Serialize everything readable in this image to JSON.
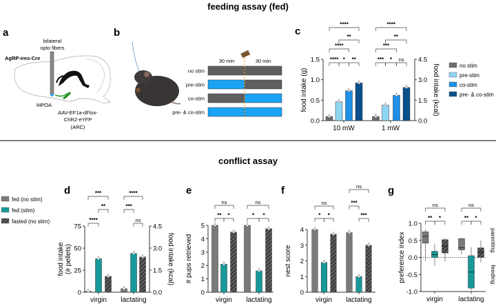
{
  "titles": {
    "top": "feeding assay (fed)",
    "bottom": "conflict assay"
  },
  "panel_labels": {
    "a": "a",
    "b": "b",
    "c": "c",
    "d": "d",
    "e": "e",
    "f": "f",
    "g": "g"
  },
  "panel_a": {
    "fiber_label_1": "bilateral",
    "fiber_label_2": "opto fibers",
    "genotype": "AgRP-ires-Cre",
    "region": "MPOA",
    "virus_1": "AAV-EF1a-dFlox-",
    "virus_2": "ChR2-eYFP",
    "virus_3": "(ARC)"
  },
  "panel_b": {
    "period_1": "30 min",
    "period_2": "30 min",
    "rows": [
      {
        "label": "no stim",
        "first": "off",
        "second": "off"
      },
      {
        "label": "pre-stim",
        "first": "on",
        "second": "off"
      },
      {
        "label": "co-stim",
        "first": "off",
        "second": "on"
      },
      {
        "label": "pre- & co-stim",
        "first": "on",
        "second": "on"
      }
    ],
    "colors": {
      "on": "#1aa3f5",
      "off": "#5f5f5f",
      "food_marker": "#f0a030"
    }
  },
  "legend_c": [
    {
      "label": "no stim",
      "color": "#6e6e6e"
    },
    {
      "label": "pre-stim",
      "color": "#8fd6f5"
    },
    {
      "label": "co-stim",
      "color": "#1e90e8"
    },
    {
      "label": "pre- & co-stim",
      "color": "#0b4f8a"
    }
  ],
  "legend_d": [
    {
      "label": "fed (no stim)",
      "color": "#7a7a7a",
      "hatch": false
    },
    {
      "label": "fed (stim)",
      "color": "#17999a",
      "hatch": false
    },
    {
      "label": "fasted (no stim)",
      "color": "#3d3d3d",
      "hatch": true
    }
  ],
  "chart_data": [
    {
      "id": "c",
      "type": "bar",
      "ylabel": "food intake (g)",
      "ylabel_right": "food intake (kcal)",
      "ylim": [
        0,
        1.5
      ],
      "yticks": [
        "0.0",
        "0.5",
        "1.0",
        "1.5"
      ],
      "ylim_right": [
        0,
        4.5
      ],
      "yticks_right": [
        "0.0",
        "1.5",
        "3.0",
        "4.5"
      ],
      "categories": [
        "10 mW",
        "1 mW"
      ],
      "series": [
        {
          "name": "no stim",
          "values": [
            0.1,
            0.1
          ]
        },
        {
          "name": "pre-stim",
          "values": [
            0.46,
            0.38
          ]
        },
        {
          "name": "co-stim",
          "values": [
            0.73,
            0.62
          ]
        },
        {
          "name": "pre- & co-stim",
          "values": [
            0.92,
            0.81
          ]
        }
      ],
      "significance": [
        [
          {
            "pair": [
              0,
              1
            ],
            "tier": 0,
            "label": "****"
          },
          {
            "pair": [
              1,
              2
            ],
            "tier": 0,
            "label": "*"
          },
          {
            "pair": [
              2,
              3
            ],
            "tier": 0,
            "label": "**"
          },
          {
            "pair": [
              0,
              2
            ],
            "tier": 1,
            "label": "****"
          },
          {
            "pair": [
              1,
              3
            ],
            "tier": 2,
            "label": "**"
          },
          {
            "pair": [
              0,
              3
            ],
            "tier": 3,
            "label": "****"
          }
        ],
        [
          {
            "pair": [
              0,
              1
            ],
            "tier": 0,
            "label": "***"
          },
          {
            "pair": [
              1,
              2
            ],
            "tier": 0,
            "label": "*"
          },
          {
            "pair": [
              2,
              3
            ],
            "tier": 0,
            "label": "ns"
          },
          {
            "pair": [
              0,
              2
            ],
            "tier": 1,
            "label": "***"
          },
          {
            "pair": [
              1,
              3
            ],
            "tier": 2,
            "label": "**"
          },
          {
            "pair": [
              0,
              3
            ],
            "tier": 3,
            "label": "****"
          }
        ]
      ]
    },
    {
      "id": "d",
      "type": "bar",
      "ylabel": "food intake",
      "ylabel_2": "(# pellets)",
      "ylabel_right": "food intake (kcal)",
      "ylim": [
        0,
        75
      ],
      "yticks": [
        "0",
        "25",
        "50",
        "75"
      ],
      "ylim_right": [
        0,
        4.5
      ],
      "yticks_right": [
        "0.0",
        "1.5",
        "3.0",
        "4.5"
      ],
      "categories": [
        "virgin",
        "lactating"
      ],
      "series": [
        {
          "name": "fed (no stim)",
          "values": [
            1,
            4
          ]
        },
        {
          "name": "fed (stim)",
          "values": [
            38,
            44
          ]
        },
        {
          "name": "fasted (no stim)",
          "values": [
            18,
            40
          ]
        }
      ],
      "significance": [
        [
          {
            "pair": [
              0,
              1
            ],
            "tier": 0,
            "label": "****"
          },
          {
            "pair": [
              1,
              2
            ],
            "tier": 1,
            "label": "**"
          },
          {
            "pair": [
              0,
              2
            ],
            "tier": 2,
            "label": "***"
          }
        ],
        [
          {
            "pair": [
              1,
              2
            ],
            "tier": 0,
            "label": "ns"
          },
          {
            "pair": [
              0,
              1
            ],
            "tier": 1,
            "label": "***"
          },
          {
            "pair": [
              0,
              2
            ],
            "tier": 2,
            "label": "****"
          }
        ]
      ]
    },
    {
      "id": "e",
      "type": "bar",
      "ylabel": "# pups retrieved",
      "ylim": [
        0,
        5
      ],
      "yticks": [
        "0",
        "1",
        "2",
        "3",
        "4",
        "5"
      ],
      "categories": [
        "virgin",
        "lactating"
      ],
      "series": [
        {
          "name": "fed (no stim)",
          "values": [
            5,
            5
          ]
        },
        {
          "name": "fed (stim)",
          "values": [
            2.1,
            1.6
          ]
        },
        {
          "name": "fasted (no stim)",
          "values": [
            4.5,
            4.75
          ]
        }
      ],
      "significance": [
        [
          {
            "pair": [
              0,
              1
            ],
            "tier": 0,
            "label": "**"
          },
          {
            "pair": [
              1,
              2
            ],
            "tier": 0,
            "label": "*"
          },
          {
            "pair": [
              0,
              2
            ],
            "tier": 1,
            "label": "ns"
          }
        ],
        [
          {
            "pair": [
              0,
              1
            ],
            "tier": 0,
            "label": "*"
          },
          {
            "pair": [
              1,
              2
            ],
            "tier": 0,
            "label": "*"
          },
          {
            "pair": [
              0,
              2
            ],
            "tier": 1,
            "label": "ns"
          }
        ]
      ]
    },
    {
      "id": "f",
      "type": "bar",
      "ylabel": "nest score",
      "ylim": [
        0,
        4
      ],
      "yticks": [
        "0",
        "1",
        "2",
        "3",
        "4"
      ],
      "categories": [
        "virgin",
        "lactating"
      ],
      "series": [
        {
          "name": "fed (no stim)",
          "values": [
            4,
            3.8
          ]
        },
        {
          "name": "fed (stim)",
          "values": [
            1.9,
            1.0
          ]
        },
        {
          "name": "fasted (no stim)",
          "values": [
            3.7,
            3.0
          ]
        }
      ],
      "significance": [
        [
          {
            "pair": [
              0,
              1
            ],
            "tier": 0,
            "label": "*"
          },
          {
            "pair": [
              1,
              2
            ],
            "tier": 0,
            "label": "*"
          },
          {
            "pair": [
              0,
              2
            ],
            "tier": 1,
            "label": "ns"
          }
        ],
        [
          {
            "pair": [
              1,
              2
            ],
            "tier": 0,
            "label": "***"
          },
          {
            "pair": [
              0,
              1
            ],
            "tier": 1,
            "label": "***"
          },
          {
            "pair": [
              0,
              2
            ],
            "tier": 2,
            "label": "ns"
          }
        ]
      ]
    },
    {
      "id": "g",
      "type": "box",
      "ylabel": "preference index",
      "side_labels": [
        "parenting",
        "feeding"
      ],
      "ylim": [
        -1.0,
        1.0
      ],
      "yticks": [
        "-1.0",
        "-0.5",
        "0.0",
        "0.5",
        "1.0"
      ],
      "categories": [
        "virgin",
        "lactating"
      ],
      "series": [
        {
          "name": "fed (no stim)",
          "boxes": [
            {
              "min": -0.1,
              "q1": 0.42,
              "median": 0.62,
              "q3": 0.75,
              "max": 0.82
            },
            {
              "min": 0.08,
              "q1": 0.22,
              "median": 0.28,
              "q3": 0.55,
              "max": 0.58
            }
          ]
        },
        {
          "name": "fed (stim)",
          "boxes": [
            {
              "min": -0.25,
              "q1": 0.0,
              "median": 0.08,
              "q3": 0.18,
              "max": 0.4
            },
            {
              "min": -0.97,
              "q1": -0.9,
              "median": -0.43,
              "q3": 0.05,
              "max": 0.3
            }
          ]
        },
        {
          "name": "fasted (no stim)",
          "boxes": [
            {
              "min": -0.12,
              "q1": 0.13,
              "median": 0.32,
              "q3": 0.52,
              "max": 0.57
            },
            {
              "min": -0.15,
              "q1": 0.0,
              "median": 0.15,
              "q3": 0.28,
              "max": 0.5
            }
          ]
        }
      ],
      "significance": [
        [
          {
            "pair": [
              0,
              1
            ],
            "tier": 0,
            "label": "**"
          },
          {
            "pair": [
              1,
              2
            ],
            "tier": 0,
            "label": "*"
          },
          {
            "pair": [
              0,
              2
            ],
            "tier": 1,
            "label": "ns"
          }
        ],
        [
          {
            "pair": [
              0,
              1
            ],
            "tier": 0,
            "label": "**"
          },
          {
            "pair": [
              1,
              2
            ],
            "tier": 0,
            "label": "*"
          },
          {
            "pair": [
              0,
              2
            ],
            "tier": 1,
            "label": "ns"
          }
        ]
      ]
    }
  ]
}
